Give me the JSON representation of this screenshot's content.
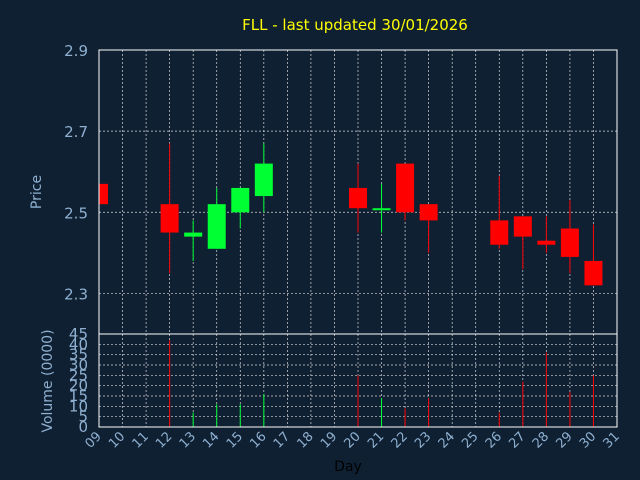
{
  "colors": {
    "background": "#0f2033",
    "frame": "#ffffff",
    "grid": "#d8d8d8",
    "title": "#ffff00",
    "axis_text": "#8fb0d0",
    "up": "#00ff33",
    "down": "#ff0000"
  },
  "chart_data": [
    {
      "type": "candlestick",
      "title": "FLL - last updated 30/01/2026",
      "ylabel": "Price",
      "ylim": [
        2.2,
        2.9
      ],
      "yticks": [
        "2.3",
        "2.5",
        "2.7",
        "2.9"
      ],
      "grid": true,
      "candles": [
        {
          "day": 9,
          "open": 2.57,
          "high": 2.57,
          "low": 2.52,
          "close": 2.52
        },
        {
          "day": 12,
          "open": 2.52,
          "high": 2.67,
          "low": 2.35,
          "close": 2.45
        },
        {
          "day": 13,
          "open": 2.44,
          "high": 2.48,
          "low": 2.38,
          "close": 2.45
        },
        {
          "day": 14,
          "open": 2.41,
          "high": 2.56,
          "low": 2.41,
          "close": 2.52
        },
        {
          "day": 15,
          "open": 2.5,
          "high": 2.56,
          "low": 2.46,
          "close": 2.56
        },
        {
          "day": 16,
          "open": 2.54,
          "high": 2.67,
          "low": 2.5,
          "close": 2.62
        },
        {
          "day": 20,
          "open": 2.56,
          "high": 2.62,
          "low": 2.45,
          "close": 2.51
        },
        {
          "day": 21,
          "open": 2.51,
          "high": 2.57,
          "low": 2.45,
          "close": 2.51
        },
        {
          "day": 22,
          "open": 2.62,
          "high": 2.62,
          "low": 2.48,
          "close": 2.5
        },
        {
          "day": 23,
          "open": 2.52,
          "high": 2.52,
          "low": 2.4,
          "close": 2.48
        },
        {
          "day": 26,
          "open": 2.48,
          "high": 2.59,
          "low": 2.41,
          "close": 2.42
        },
        {
          "day": 27,
          "open": 2.49,
          "high": 2.49,
          "low": 2.36,
          "close": 2.44
        },
        {
          "day": 28,
          "open": 2.43,
          "high": 2.49,
          "low": 2.4,
          "close": 2.42
        },
        {
          "day": 29,
          "open": 2.46,
          "high": 2.53,
          "low": 2.35,
          "close": 2.39
        },
        {
          "day": 30,
          "open": 2.38,
          "high": 2.47,
          "low": 2.32,
          "close": 2.32
        }
      ]
    },
    {
      "type": "bar",
      "xlabel": "Day",
      "ylabel": "Volume (0000)",
      "ylim": [
        0,
        45
      ],
      "yticks": [
        "0",
        "5",
        "10",
        "15",
        "20",
        "25",
        "30",
        "35",
        "40",
        "45"
      ],
      "xlim": [
        9,
        31
      ],
      "xticks": [
        "09",
        "10",
        "11",
        "12",
        "13",
        "14",
        "15",
        "16",
        "17",
        "18",
        "19",
        "20",
        "21",
        "22",
        "23",
        "24",
        "25",
        "26",
        "27",
        "28",
        "29",
        "30",
        "31"
      ],
      "grid": true,
      "bars": [
        {
          "day": 12,
          "value": 42,
          "dir": "down"
        },
        {
          "day": 13,
          "value": 7,
          "dir": "up"
        },
        {
          "day": 14,
          "value": 11,
          "dir": "up"
        },
        {
          "day": 15,
          "value": 11,
          "dir": "up"
        },
        {
          "day": 16,
          "value": 16,
          "dir": "up"
        },
        {
          "day": 20,
          "value": 25,
          "dir": "down"
        },
        {
          "day": 21,
          "value": 14,
          "dir": "up"
        },
        {
          "day": 22,
          "value": 9,
          "dir": "down"
        },
        {
          "day": 23,
          "value": 14,
          "dir": "down"
        },
        {
          "day": 26,
          "value": 7,
          "dir": "down"
        },
        {
          "day": 27,
          "value": 22,
          "dir": "down"
        },
        {
          "day": 28,
          "value": 36,
          "dir": "down"
        },
        {
          "day": 29,
          "value": 17,
          "dir": "down"
        },
        {
          "day": 30,
          "value": 25,
          "dir": "down"
        }
      ]
    }
  ]
}
